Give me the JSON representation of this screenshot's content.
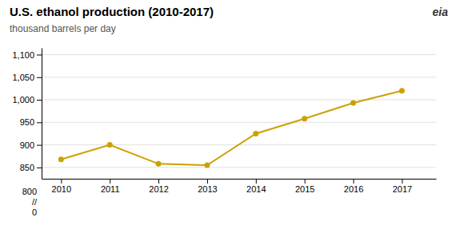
{
  "chart_data": {
    "type": "line",
    "title": "U.S. ethanol production (2010-2017)",
    "subtitle": "thousand barrels per day",
    "x": [
      2010,
      2011,
      2012,
      2013,
      2014,
      2015,
      2016,
      2017
    ],
    "values": [
      868,
      900,
      858,
      855,
      925,
      958,
      993,
      1020
    ],
    "color": "#CDA000",
    "marker": "circle",
    "xlim": [
      2009.6,
      2017.7
    ],
    "xticks": [
      2010,
      2011,
      2012,
      2013,
      2014,
      2015,
      2016,
      2017
    ],
    "ylim": [
      825,
      1115
    ],
    "yticks": [
      850,
      900,
      950,
      {
        "value": 1000,
        "label": "1,000"
      },
      {
        "value": 1050,
        "label": "1,050"
      },
      {
        "value": 1100,
        "label": "1,100"
      }
    ],
    "grid": true,
    "annotations": [
      "800",
      "//",
      "0",
      "eia"
    ]
  }
}
